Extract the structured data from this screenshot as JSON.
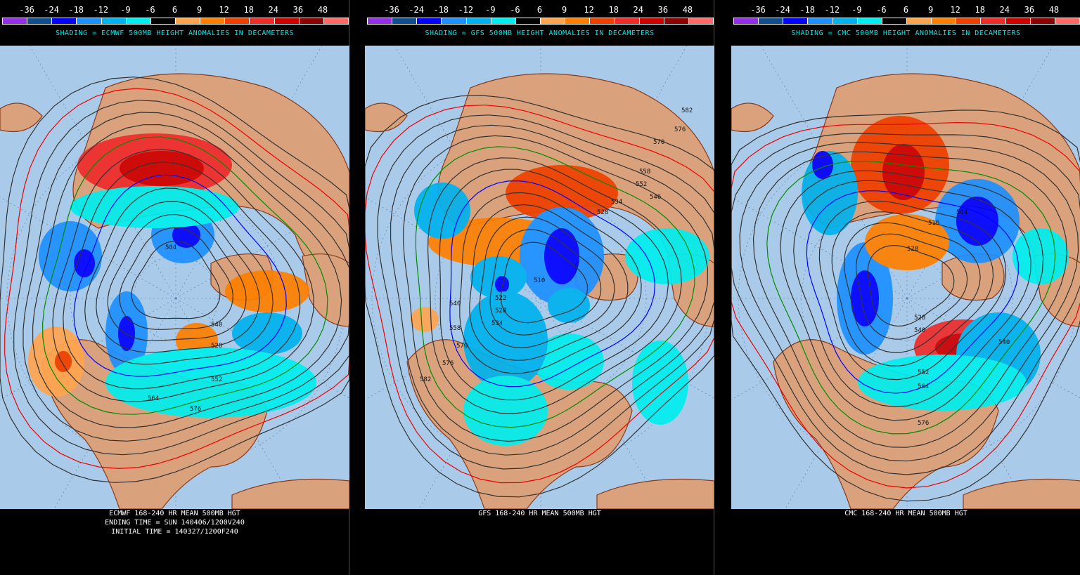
{
  "colorbar": {
    "ticks": [
      "-36",
      "-24",
      "-18",
      "-12",
      "-9",
      "-6",
      "6",
      "9",
      "12",
      "18",
      "24",
      "36",
      "48"
    ],
    "colors": [
      "#9130e6",
      "#134e8c",
      "#0000ff",
      "#1e90ff",
      "#00b2ee",
      "#00eeee",
      "#000000",
      "#ffa54f",
      "#ff7f00",
      "#ee4000",
      "#ee2c2c",
      "#cd0000",
      "#8b0000",
      "#ff6a6a"
    ]
  },
  "map_colors": {
    "ocean": "#a9cbe9",
    "land": "#d9a27d",
    "coast": "#8b3a1a",
    "contour": "#333333",
    "line_540": "#0000ff",
    "line_552": "#008b00",
    "line_576": "#ee0000"
  },
  "panels": [
    {
      "model": "ECMWF",
      "shading_title": "SHADING = ECMWF 500MB HEIGHT ANOMALIES IN DECAMETERS",
      "caption": [
        "ECMWF 168-240 HR MEAN 500MB HGT",
        "ENDING TIME = SUN 140406/1200V240",
        "INITIAL TIME = 140327/1200F240"
      ],
      "contour_labels": [
        "504",
        "540",
        "552",
        "564",
        "576",
        "528"
      ]
    },
    {
      "model": "GFS",
      "shading_title": "SHADING = GFS 500MB HEIGHT ANOMALIES IN DECAMETERS",
      "caption": [
        "GFS 168-240 HR MEAN 500MB HGT"
      ],
      "contour_labels": [
        "582",
        "570",
        "576",
        "558",
        "552",
        "534",
        "546",
        "528",
        "510",
        "522",
        "528",
        "534",
        "540",
        "558",
        "570",
        "576",
        "582"
      ]
    },
    {
      "model": "CMC",
      "shading_title": "SHADING = CMC 500MB HEIGHT ANOMALIES IN DECAMETERS",
      "caption": [
        "CMC 168-240 HR MEAN 500MB HGT"
      ],
      "contour_labels": [
        "528",
        "516",
        "504",
        "528",
        "540",
        "552",
        "564",
        "576",
        "540"
      ]
    }
  ]
}
